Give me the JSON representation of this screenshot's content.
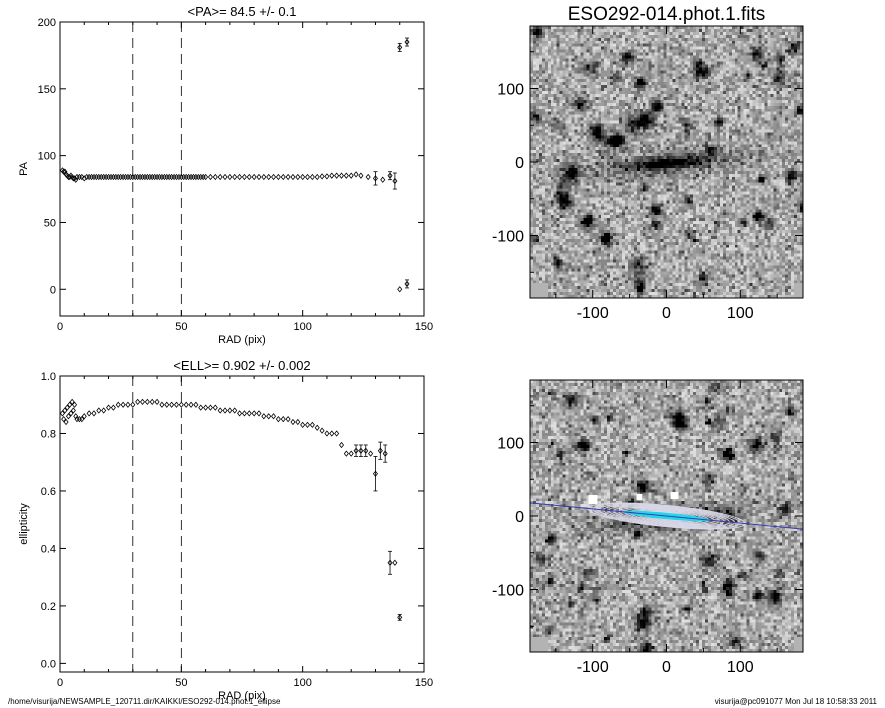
{
  "footer": {
    "path": "/home/visurija/NEWSAMPLE_120711.dir/KAIKKI/ESO292-014.phot.1_ellipse",
    "user_stamp": "visurija@pc091077  Mon Jul 18 10:58:33 2011"
  },
  "chart_data": [
    {
      "type": "scatter",
      "title": "<PA>=  84.5 +/-   0.1",
      "xlabel": "RAD (pix)",
      "ylabel": "PA",
      "xlim": [
        0,
        150
      ],
      "ylim": [
        -20,
        200
      ],
      "xticks": [
        "0",
        "50",
        "100",
        "150"
      ],
      "yticks": [
        "0",
        "50",
        "100",
        "150",
        "200"
      ],
      "vlines": [
        30,
        50
      ],
      "series": [
        {
          "points": [
            [
              1,
              89
            ],
            [
              1.5,
              88
            ],
            [
              2,
              88
            ],
            [
              2.5,
              86
            ],
            [
              3,
              85
            ],
            [
              3.5,
              84
            ],
            [
              4,
              84
            ],
            [
              4.5,
              85
            ],
            [
              5,
              84
            ],
            [
              5.5,
              83
            ],
            [
              6,
              83
            ],
            [
              6.5,
              82
            ],
            [
              7,
              84
            ],
            [
              8,
              84
            ],
            [
              9,
              84
            ],
            [
              10,
              83
            ],
            [
              11,
              84
            ],
            [
              12,
              84
            ],
            [
              13,
              84
            ],
            [
              14,
              84
            ],
            [
              15,
              84
            ],
            [
              16,
              84
            ],
            [
              17,
              84
            ],
            [
              18,
              84
            ],
            [
              19,
              84
            ],
            [
              20,
              84
            ],
            [
              21,
              84
            ],
            [
              22,
              84
            ],
            [
              23,
              84
            ],
            [
              24,
              84
            ],
            [
              25,
              84
            ],
            [
              26,
              84
            ],
            [
              27,
              84
            ],
            [
              28,
              84
            ],
            [
              29,
              84
            ],
            [
              30,
              84
            ],
            [
              31,
              84
            ],
            [
              32,
              84
            ],
            [
              33,
              84
            ],
            [
              34,
              84
            ],
            [
              35,
              84
            ],
            [
              36,
              84
            ],
            [
              37,
              84
            ],
            [
              38,
              84
            ],
            [
              39,
              84
            ],
            [
              40,
              84
            ],
            [
              41,
              84
            ],
            [
              42,
              84
            ],
            [
              43,
              84
            ],
            [
              44,
              84
            ],
            [
              45,
              84
            ],
            [
              46,
              84
            ],
            [
              47,
              84
            ],
            [
              48,
              84
            ],
            [
              49,
              84
            ],
            [
              50,
              84
            ],
            [
              51,
              84
            ],
            [
              52,
              84
            ],
            [
              53,
              84
            ],
            [
              54,
              84
            ],
            [
              55,
              84
            ],
            [
              56,
              84
            ],
            [
              57,
              84
            ],
            [
              58,
              84
            ],
            [
              59,
              84
            ],
            [
              60,
              84
            ],
            [
              62,
              84
            ],
            [
              64,
              84
            ],
            [
              66,
              84
            ],
            [
              68,
              84
            ],
            [
              70,
              84
            ],
            [
              72,
              84
            ],
            [
              74,
              84
            ],
            [
              76,
              84
            ],
            [
              78,
              84
            ],
            [
              80,
              84
            ],
            [
              82,
              84
            ],
            [
              84,
              84
            ],
            [
              86,
              84
            ],
            [
              88,
              84
            ],
            [
              90,
              84
            ],
            [
              92,
              84
            ],
            [
              94,
              84
            ],
            [
              96,
              84
            ],
            [
              98,
              84
            ],
            [
              100,
              84
            ],
            [
              102,
              84
            ],
            [
              104,
              84
            ],
            [
              106,
              84
            ],
            [
              108,
              84.5
            ],
            [
              110,
              84.5
            ],
            [
              112,
              85
            ],
            [
              114,
              85
            ],
            [
              116,
              85
            ],
            [
              118,
              85
            ],
            [
              120,
              85
            ],
            [
              122,
              86
            ],
            [
              124,
              85
            ],
            [
              127,
              84
            ],
            [
              130,
              83
            ],
            [
              133,
              82
            ],
            [
              136,
              85
            ],
            [
              138,
              81
            ],
            [
              140,
              0
            ],
            [
              140,
              181
            ],
            [
              143,
              4
            ],
            [
              143,
              185
            ]
          ],
          "error_bars": [
            {
              "x": 130,
              "y": 83,
              "err": 5
            },
            {
              "x": 136,
              "y": 85,
              "err": 3
            },
            {
              "x": 138,
              "y": 81,
              "err": 6
            },
            {
              "x": 140,
              "y": 181,
              "err": 3
            },
            {
              "x": 143,
              "y": 185,
              "err": 3
            },
            {
              "x": 143,
              "y": 4,
              "err": 3
            }
          ]
        }
      ]
    },
    {
      "type": "scatter",
      "title": "<ELL>= 0.902 +/-  0.002",
      "xlabel": "RAD (pix)",
      "ylabel": "ellipticity",
      "xlim": [
        0,
        150
      ],
      "ylim": [
        -0.03,
        1.0
      ],
      "xticks": [
        "0",
        "50",
        "100",
        "150"
      ],
      "yticks": [
        "0.0",
        "0.2",
        "0.4",
        "0.6",
        "0.8",
        "1.0"
      ],
      "vlines": [
        30,
        50
      ],
      "series": [
        {
          "points": [
            [
              1,
              0.87
            ],
            [
              1.5,
              0.85
            ],
            [
              2,
              0.88
            ],
            [
              2.5,
              0.84
            ],
            [
              3,
              0.89
            ],
            [
              3.5,
              0.86
            ],
            [
              4,
              0.9
            ],
            [
              4.5,
              0.87
            ],
            [
              5,
              0.91
            ],
            [
              5.5,
              0.88
            ],
            [
              6,
              0.9
            ],
            [
              6.5,
              0.86
            ],
            [
              7,
              0.85
            ],
            [
              8,
              0.85
            ],
            [
              9,
              0.85
            ],
            [
              10,
              0.86
            ],
            [
              12,
              0.87
            ],
            [
              14,
              0.87
            ],
            [
              16,
              0.88
            ],
            [
              18,
              0.88
            ],
            [
              20,
              0.89
            ],
            [
              22,
              0.89
            ],
            [
              24,
              0.9
            ],
            [
              26,
              0.9
            ],
            [
              28,
              0.9
            ],
            [
              30,
              0.9
            ],
            [
              32,
              0.91
            ],
            [
              34,
              0.91
            ],
            [
              36,
              0.91
            ],
            [
              38,
              0.91
            ],
            [
              40,
              0.91
            ],
            [
              42,
              0.9
            ],
            [
              44,
              0.9
            ],
            [
              46,
              0.9
            ],
            [
              48,
              0.9
            ],
            [
              50,
              0.9
            ],
            [
              52,
              0.9
            ],
            [
              54,
              0.9
            ],
            [
              56,
              0.9
            ],
            [
              58,
              0.89
            ],
            [
              60,
              0.89
            ],
            [
              62,
              0.89
            ],
            [
              64,
              0.89
            ],
            [
              66,
              0.88
            ],
            [
              68,
              0.88
            ],
            [
              70,
              0.88
            ],
            [
              72,
              0.88
            ],
            [
              74,
              0.87
            ],
            [
              76,
              0.87
            ],
            [
              78,
              0.87
            ],
            [
              80,
              0.87
            ],
            [
              82,
              0.87
            ],
            [
              84,
              0.86
            ],
            [
              86,
              0.86
            ],
            [
              88,
              0.86
            ],
            [
              90,
              0.85
            ],
            [
              92,
              0.85
            ],
            [
              94,
              0.85
            ],
            [
              96,
              0.84
            ],
            [
              98,
              0.84
            ],
            [
              100,
              0.83
            ],
            [
              102,
              0.83
            ],
            [
              104,
              0.83
            ],
            [
              106,
              0.82
            ],
            [
              108,
              0.81
            ],
            [
              110,
              0.8
            ],
            [
              112,
              0.8
            ],
            [
              114,
              0.8
            ],
            [
              116,
              0.76
            ],
            [
              118,
              0.73
            ],
            [
              120,
              0.73
            ],
            [
              122,
              0.74
            ],
            [
              124,
              0.74
            ],
            [
              126,
              0.74
            ],
            [
              128,
              0.73
            ],
            [
              130,
              0.66
            ],
            [
              132,
              0.74
            ],
            [
              134,
              0.73
            ],
            [
              136,
              0.35
            ],
            [
              138,
              0.35
            ],
            [
              140,
              0.16
            ]
          ],
          "error_bars": [
            {
              "x": 122,
              "y": 0.74,
              "err": 0.02
            },
            {
              "x": 124,
              "y": 0.74,
              "err": 0.02
            },
            {
              "x": 126,
              "y": 0.74,
              "err": 0.02
            },
            {
              "x": 130,
              "y": 0.66,
              "err": 0.06
            },
            {
              "x": 132,
              "y": 0.74,
              "err": 0.03
            },
            {
              "x": 134,
              "y": 0.73,
              "err": 0.03
            },
            {
              "x": 136,
              "y": 0.35,
              "err": 0.04
            },
            {
              "x": 140,
              "y": 0.16,
              "err": 0.01
            }
          ]
        }
      ]
    },
    {
      "type": "heatmap",
      "title": "ESO292-014.phot.1.fits",
      "xlim": [
        -185,
        185
      ],
      "ylim": [
        -185,
        185
      ],
      "xticks": [
        "-100",
        "0",
        "100"
      ],
      "yticks": [
        "-100",
        "0",
        "100"
      ]
    },
    {
      "type": "heatmap",
      "title": "",
      "xlim": [
        -185,
        185
      ],
      "ylim": [
        -185,
        185
      ],
      "xticks": [
        "-100",
        "0",
        "100"
      ],
      "yticks": [
        "-100",
        "0",
        "100"
      ],
      "major_axis_pa_deg": 84.5,
      "ellipticity": 0.902,
      "overlay_colors": {
        "contours": "#d8d8e8",
        "core": "#22d8e8",
        "axis": "#3a3ab8"
      }
    }
  ]
}
